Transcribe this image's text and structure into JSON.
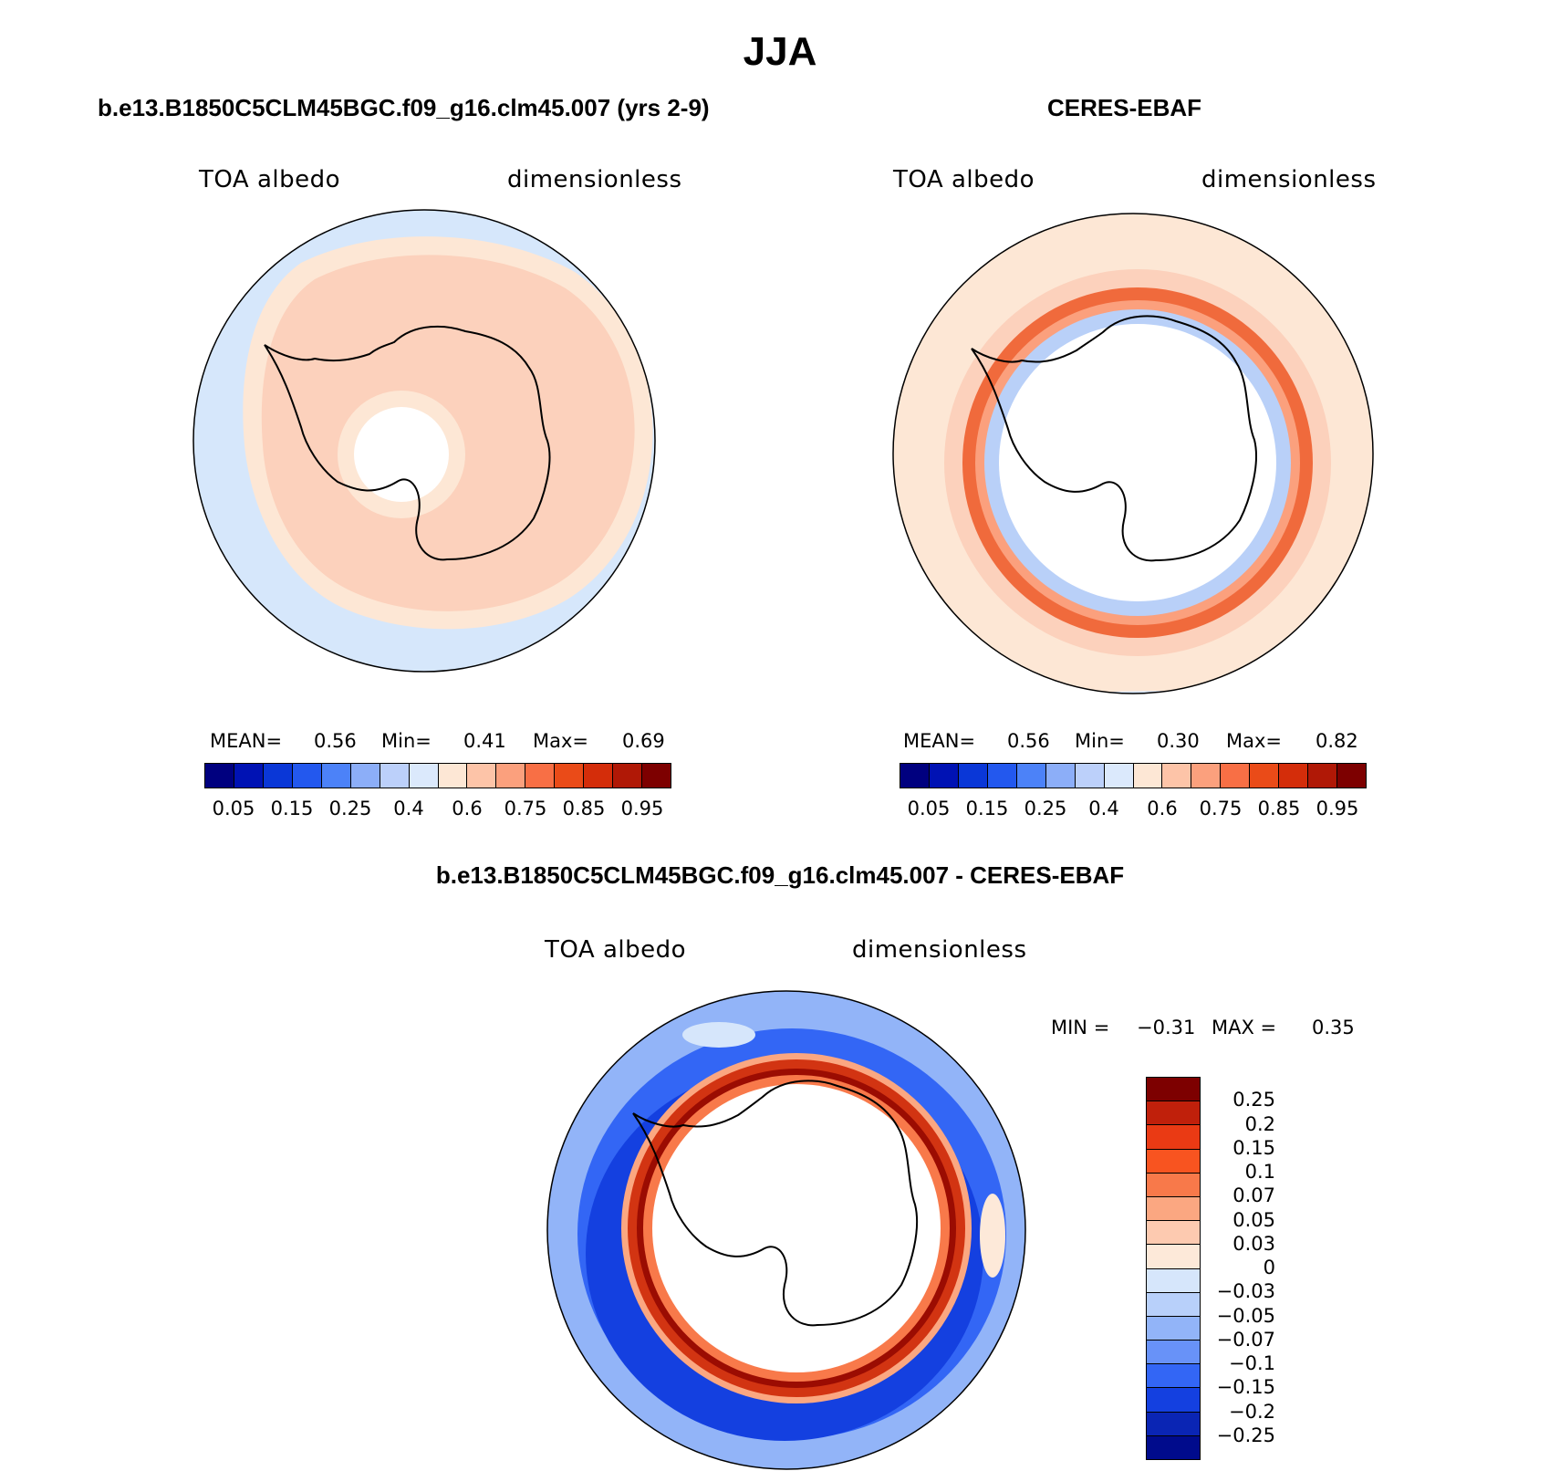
{
  "title": "JJA",
  "panels": [
    {
      "title": "b.e13.B1850C5CLM45BGC.f09_g16.clm45.007 (yrs 2-9)",
      "variable": "TOA albedo",
      "units": "dimensionless",
      "stats": {
        "mean_label": "MEAN=",
        "mean": "0.56",
        "min_label": "Min=",
        "min": "0.41",
        "max_label": "Max=",
        "max": "0.69"
      }
    },
    {
      "title": "CERES-EBAF",
      "variable": "TOA albedo",
      "units": "dimensionless",
      "stats": {
        "mean_label": "MEAN=",
        "mean": "0.56",
        "min_label": "Min=",
        "min": "0.30",
        "max_label": "Max=",
        "max": "0.82"
      }
    },
    {
      "title": "b.e13.B1850C5CLM45BGC.f09_g16.clm45.007 - CERES-EBAF",
      "variable": "TOA albedo",
      "units": "dimensionless",
      "stats": {
        "min_label": "MIN =",
        "min": "−0.31",
        "max_label": "MAX =",
        "max": "0.35"
      }
    }
  ],
  "colorbar_abs": {
    "ticks": [
      "0.05",
      "0.15",
      "0.25",
      "0.4",
      "0.6",
      "0.75",
      "0.85",
      "0.95"
    ],
    "colors": [
      "#00007f",
      "#0012b4",
      "#0a37d7",
      "#2358ee",
      "#4c82f8",
      "#8caef8",
      "#bcd0fa",
      "#dbe9fc",
      "#fde7d5",
      "#fdc4a8",
      "#fba07d",
      "#f86f45",
      "#ea4b18",
      "#d42d0a",
      "#b01806",
      "#7d0000"
    ]
  },
  "colorbar_diff": {
    "ticks": [
      "0.25",
      "0.2",
      "0.15",
      "0.1",
      "0.07",
      "0.05",
      "0.03",
      "0",
      "−0.03",
      "−0.05",
      "−0.07",
      "−0.1",
      "−0.15",
      "−0.2",
      "−0.25"
    ],
    "colors": [
      "#7d0000",
      "#c0200b",
      "#ea3a14",
      "#f85420",
      "#f8794a",
      "#fba781",
      "#fdcab0",
      "#fde9d9",
      "#d6e6fb",
      "#b8d0fa",
      "#92b4f8",
      "#6892f8",
      "#3366f5",
      "#1440e0",
      "#0a25b4",
      "#000b8c"
    ]
  },
  "map_colors": {
    "ocean_low": "#d6e7fb",
    "band_light": "#fde7d5",
    "band_mid": "#fcd1bc",
    "band_strong": "#fba07d",
    "band_deep": "#f06a3c",
    "ring_blue": "#b9d0f8",
    "diff_blue": "#2a5cf0",
    "diff_dark": "#0a2ab8",
    "diff_red": "#d23412",
    "diff_darkred": "#9b0c02"
  }
}
